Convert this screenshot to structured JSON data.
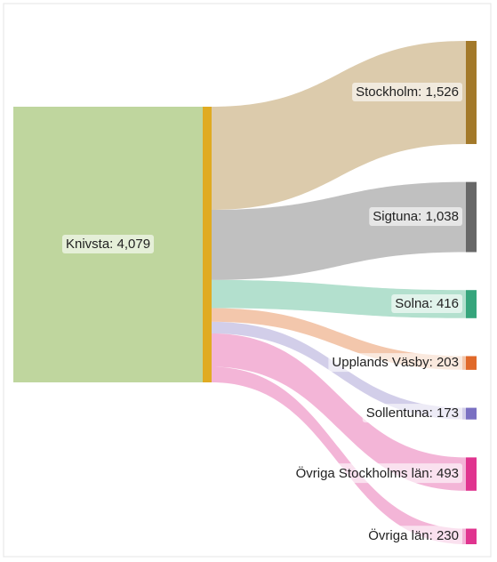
{
  "chart_data": {
    "type": "sankey",
    "source": {
      "label": "Knivsta: 4,079",
      "value": 4079,
      "color": "#bfd69e",
      "bar_color": "#e0ab22"
    },
    "targets": [
      {
        "label": "Stockholm: 1,526",
        "value": 1526,
        "color": "#d6c29e",
        "bar_color": "#a3792a"
      },
      {
        "label": "Sigtuna: 1,038",
        "value": 1038,
        "color": "#b5b5b5",
        "bar_color": "#686868"
      },
      {
        "label": "Solna: 416",
        "value": 416,
        "color": "#a6dac6",
        "bar_color": "#36a57c"
      },
      {
        "label": "Upplands Väsby: 203",
        "value": 203,
        "color": "#f1bd9d",
        "bar_color": "#e0692a"
      },
      {
        "label": "Sollentuna: 173",
        "value": 173,
        "color": "#cac6e5",
        "bar_color": "#7a70c2"
      },
      {
        "label": "Övriga Stockholms län: 493",
        "value": 493,
        "color": "#f1a8d0",
        "bar_color": "#e0348f"
      },
      {
        "label": "Övriga län: 230",
        "value": 230,
        "color": "#f1a8d0",
        "bar_color": "#e0348f"
      }
    ]
  }
}
